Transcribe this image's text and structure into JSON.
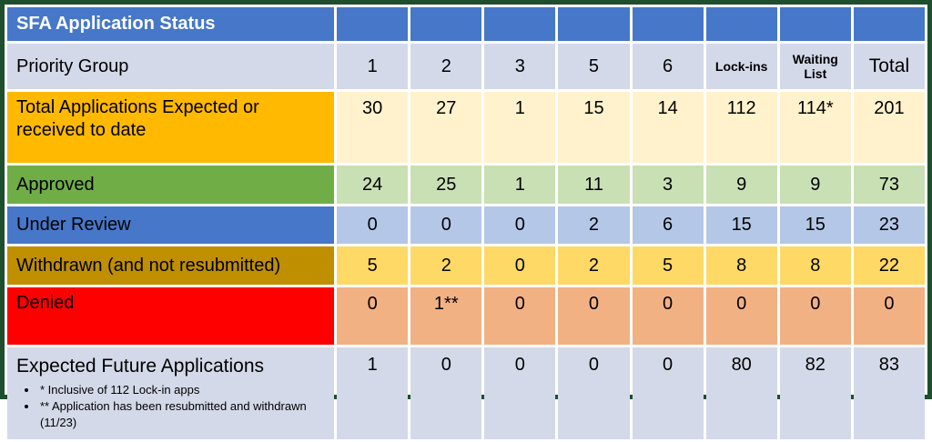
{
  "title": "SFA Application Status",
  "header": {
    "priority_label": "Priority Group",
    "columns": [
      "1",
      "2",
      "3",
      "5",
      "6",
      "Lock-ins",
      "Waiting List",
      "Total"
    ]
  },
  "rows": [
    {
      "label": "Total Applications Expected or received to date",
      "values": [
        "30",
        "27",
        "1",
        "15",
        "14",
        "112",
        "114*",
        "201"
      ]
    },
    {
      "label": "Approved",
      "values": [
        "24",
        "25",
        "1",
        "11",
        "3",
        "9",
        "9",
        "73"
      ]
    },
    {
      "label": "Under Review",
      "values": [
        "0",
        "0",
        "0",
        "2",
        "6",
        "15",
        "15",
        "23"
      ]
    },
    {
      "label": "Withdrawn (and not resubmitted)",
      "values": [
        "5",
        "2",
        "0",
        "2",
        "5",
        "8",
        "8",
        "22"
      ]
    },
    {
      "label": "Denied",
      "values": [
        "0",
        "1**",
        "0",
        "0",
        "0",
        "0",
        "0",
        "0"
      ]
    },
    {
      "label": "Expected Future Applications",
      "values": [
        "1",
        "0",
        "0",
        "0",
        "0",
        "80",
        "82",
        "83"
      ]
    }
  ],
  "footnotes": [
    "* Inclusive of 112 Lock-in apps",
    "** Application has been resubmitted and withdrawn (11/23)"
  ],
  "colors": {
    "border_green": "#1F4E2F",
    "header_blue": "#4677C8",
    "lavender": "#D4D9E9",
    "gold_label": "#FFB900",
    "gold_value": "#FFF2CC",
    "green_label": "#70AD47",
    "green_value": "#C9E0B4",
    "blue_label": "#4677C8",
    "blue_value": "#B4C7E7",
    "dark_gold_label": "#BF8F00",
    "dark_gold_value": "#FFD966",
    "red_label": "#FF0000",
    "red_value": "#F2B183"
  }
}
